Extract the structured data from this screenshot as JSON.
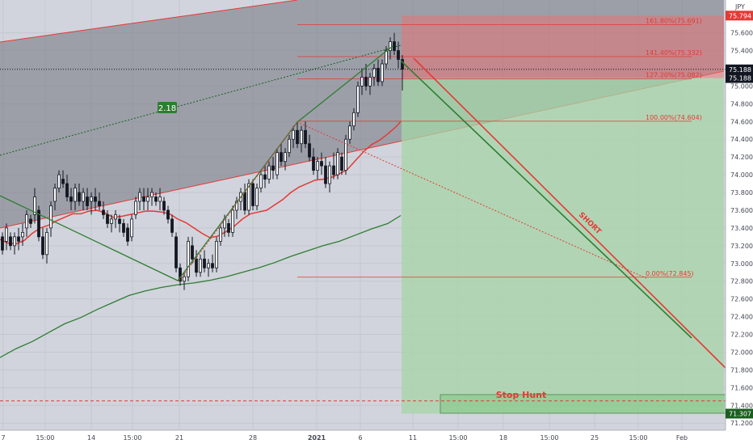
{
  "chart_data": {
    "type": "line",
    "currency": "JPY",
    "x_tick_labels": [
      "7",
      "15:00",
      "14",
      "15:00",
      "21",
      "28",
      "2021",
      "6",
      "11",
      "15:00",
      "18",
      "15:00",
      "25",
      "15:00",
      "Feb"
    ],
    "y_tick_labels": [
      "71.200",
      "71.400",
      "71.600",
      "71.800",
      "72.000",
      "72.200",
      "72.400",
      "72.600",
      "72.800",
      "73.000",
      "73.200",
      "73.400",
      "73.600",
      "73.800",
      "74.000",
      "74.200",
      "74.400",
      "74.600",
      "74.800",
      "75.000",
      "75.200",
      "75.400",
      "75.600"
    ],
    "ylim": [
      71.12,
      75.97
    ],
    "price_labels": [
      {
        "text": "75.794",
        "price": 75.794,
        "color": "#e53935"
      },
      {
        "text": "75.188",
        "price": 75.188,
        "color": "#131722"
      },
      {
        "text": "75.188",
        "price": 75.09,
        "color": "#131722"
      },
      {
        "text": "71.307",
        "price": 71.307,
        "color": "#1b5e20"
      }
    ],
    "fib_levels": [
      {
        "label": "161.80%(75.691)",
        "price": 75.691
      },
      {
        "label": "141.40%(75.332)",
        "price": 75.332
      },
      {
        "label": "127.20%(75.082)",
        "price": 75.082
      },
      {
        "label": "100.00%(74.604)",
        "price": 74.604
      },
      {
        "label": "0.00%(72.845)",
        "price": 72.845
      }
    ],
    "annotations": {
      "regression_badge": "2.18",
      "short_label": "SHORT",
      "stop_hunt_label": "Stop Hunt"
    },
    "position": {
      "entry": 75.09,
      "stop": 75.794,
      "target": 71.307
    },
    "stop_hunt_line": 71.45,
    "sma_red": [
      [
        0,
        73.27
      ],
      [
        10,
        73.23
      ],
      [
        20,
        73.22
      ],
      [
        30,
        73.26
      ],
      [
        40,
        73.34
      ],
      [
        50,
        73.4
      ],
      [
        60,
        73.43
      ],
      [
        70,
        73.48
      ],
      [
        80,
        73.52
      ],
      [
        90,
        73.56
      ],
      [
        100,
        73.56
      ],
      [
        110,
        73.59
      ],
      [
        120,
        73.6
      ],
      [
        130,
        73.57
      ],
      [
        140,
        73.52
      ],
      [
        150,
        73.53
      ],
      [
        160,
        73.55
      ],
      [
        170,
        73.57
      ],
      [
        180,
        73.59
      ],
      [
        190,
        73.59
      ],
      [
        200,
        73.58
      ],
      [
        210,
        73.56
      ],
      [
        220,
        73.5
      ],
      [
        230,
        73.46
      ],
      [
        240,
        73.4
      ],
      [
        250,
        73.34
      ],
      [
        260,
        73.29
      ],
      [
        270,
        73.31
      ],
      [
        280,
        73.36
      ],
      [
        290,
        73.42
      ],
      [
        300,
        73.5
      ],
      [
        310,
        73.56
      ],
      [
        320,
        73.58
      ],
      [
        330,
        73.6
      ],
      [
        340,
        73.66
      ],
      [
        350,
        73.72
      ],
      [
        360,
        73.8
      ],
      [
        370,
        73.86
      ],
      [
        380,
        73.9
      ],
      [
        390,
        73.94
      ],
      [
        400,
        73.95
      ],
      [
        410,
        73.97
      ],
      [
        420,
        74.01
      ],
      [
        430,
        74.06
      ],
      [
        440,
        74.16
      ],
      [
        450,
        74.26
      ],
      [
        460,
        74.34
      ],
      [
        470,
        74.39
      ],
      [
        480,
        74.46
      ],
      [
        490,
        74.54
      ],
      [
        496,
        74.6
      ]
    ],
    "sma_green": [
      [
        0,
        71.94
      ],
      [
        20,
        72.04
      ],
      [
        40,
        72.12
      ],
      [
        60,
        72.22
      ],
      [
        80,
        72.32
      ],
      [
        100,
        72.39
      ],
      [
        120,
        72.48
      ],
      [
        140,
        72.56
      ],
      [
        160,
        72.64
      ],
      [
        180,
        72.69
      ],
      [
        200,
        72.73
      ],
      [
        220,
        72.76
      ],
      [
        240,
        72.78
      ],
      [
        260,
        72.81
      ],
      [
        280,
        72.85
      ],
      [
        300,
        72.9
      ],
      [
        320,
        72.95
      ],
      [
        340,
        73.01
      ],
      [
        360,
        73.08
      ],
      [
        380,
        73.14
      ],
      [
        400,
        73.2
      ],
      [
        420,
        73.25
      ],
      [
        440,
        73.32
      ],
      [
        460,
        73.39
      ],
      [
        480,
        73.45
      ],
      [
        496,
        73.54
      ]
    ],
    "candles": [
      [
        3,
        73.3,
        73.35,
        73.1,
        73.15
      ],
      [
        8,
        73.25,
        73.45,
        73.15,
        73.4
      ],
      [
        13,
        73.3,
        73.35,
        73.15,
        73.2
      ],
      [
        18,
        73.2,
        73.35,
        73.1,
        73.3
      ],
      [
        23,
        73.3,
        73.4,
        73.15,
        73.25
      ],
      [
        28,
        73.3,
        73.45,
        73.2,
        73.35
      ],
      [
        33,
        73.4,
        73.6,
        73.3,
        73.55
      ],
      [
        38,
        73.5,
        73.55,
        73.4,
        73.45
      ],
      [
        43,
        73.55,
        73.85,
        73.45,
        73.75
      ],
      [
        48,
        73.6,
        73.65,
        73.25,
        73.3
      ],
      [
        53,
        73.3,
        73.4,
        73.05,
        73.1
      ],
      [
        58,
        73.1,
        73.4,
        73.0,
        73.35
      ],
      [
        63,
        73.4,
        73.7,
        73.3,
        73.65
      ],
      [
        68,
        73.7,
        73.9,
        73.6,
        73.85
      ],
      [
        73,
        73.85,
        74.05,
        73.8,
        74.0
      ],
      [
        78,
        73.95,
        74.05,
        73.85,
        73.9
      ],
      [
        83,
        73.9,
        74.0,
        73.7,
        73.75
      ],
      [
        88,
        73.75,
        73.85,
        73.6,
        73.7
      ],
      [
        93,
        73.7,
        73.9,
        73.6,
        73.85
      ],
      [
        98,
        73.8,
        73.9,
        73.65,
        73.7
      ],
      [
        103,
        73.7,
        73.85,
        73.6,
        73.8
      ],
      [
        108,
        73.75,
        73.85,
        73.6,
        73.65
      ],
      [
        113,
        73.7,
        73.8,
        73.55,
        73.75
      ],
      [
        118,
        73.75,
        73.85,
        73.6,
        73.7
      ],
      [
        123,
        73.7,
        73.8,
        73.6,
        73.65
      ],
      [
        128,
        73.6,
        73.7,
        73.5,
        73.55
      ],
      [
        133,
        73.55,
        73.6,
        73.4,
        73.45
      ],
      [
        138,
        73.45,
        73.55,
        73.35,
        73.5
      ],
      [
        143,
        73.5,
        73.6,
        73.4,
        73.55
      ],
      [
        148,
        73.5,
        73.55,
        73.35,
        73.45
      ],
      [
        153,
        73.45,
        73.5,
        73.3,
        73.35
      ],
      [
        158,
        73.4,
        73.45,
        73.2,
        73.25
      ],
      [
        163,
        73.3,
        73.55,
        73.25,
        73.5
      ],
      [
        168,
        73.55,
        73.75,
        73.5,
        73.7
      ],
      [
        173,
        73.7,
        73.85,
        73.6,
        73.8
      ],
      [
        178,
        73.75,
        73.85,
        73.6,
        73.7
      ],
      [
        183,
        73.7,
        73.85,
        73.6,
        73.75
      ],
      [
        188,
        73.75,
        73.85,
        73.65,
        73.8
      ],
      [
        193,
        73.75,
        73.8,
        73.65,
        73.7
      ],
      [
        198,
        73.7,
        73.85,
        73.6,
        73.75
      ],
      [
        203,
        73.7,
        73.75,
        73.55,
        73.6
      ],
      [
        208,
        73.6,
        73.65,
        73.45,
        73.5
      ],
      [
        213,
        73.5,
        73.55,
        73.3,
        73.35
      ],
      [
        218,
        73.3,
        73.35,
        72.9,
        72.95
      ],
      [
        223,
        72.95,
        73.0,
        72.75,
        72.8
      ],
      [
        228,
        72.8,
        72.9,
        72.7,
        72.85
      ],
      [
        233,
        72.85,
        73.3,
        72.8,
        73.25
      ],
      [
        238,
        73.2,
        73.3,
        73.0,
        73.05
      ],
      [
        243,
        73.05,
        73.15,
        72.85,
        72.9
      ],
      [
        248,
        72.9,
        73.1,
        72.85,
        73.05
      ],
      [
        253,
        73.05,
        73.15,
        72.9,
        72.95
      ],
      [
        258,
        72.95,
        73.05,
        72.85,
        73.0
      ],
      [
        263,
        73.0,
        73.1,
        72.9,
        72.95
      ],
      [
        268,
        72.95,
        73.3,
        72.9,
        73.25
      ],
      [
        273,
        73.25,
        73.45,
        73.2,
        73.4
      ],
      [
        278,
        73.4,
        73.55,
        73.3,
        73.5
      ],
      [
        283,
        73.45,
        73.5,
        73.3,
        73.35
      ],
      [
        288,
        73.35,
        73.65,
        73.3,
        73.6
      ],
      [
        293,
        73.6,
        73.75,
        73.5,
        73.7
      ],
      [
        298,
        73.7,
        73.85,
        73.6,
        73.8
      ],
      [
        303,
        73.8,
        73.9,
        73.55,
        73.6
      ],
      [
        308,
        73.6,
        73.95,
        73.55,
        73.9
      ],
      [
        313,
        73.9,
        73.95,
        73.6,
        73.65
      ],
      [
        318,
        73.65,
        73.9,
        73.6,
        73.85
      ],
      [
        323,
        73.85,
        74.05,
        73.8,
        74.0
      ],
      [
        328,
        74.0,
        74.1,
        73.85,
        73.95
      ],
      [
        333,
        73.95,
        74.15,
        73.9,
        74.1
      ],
      [
        338,
        74.1,
        74.2,
        73.95,
        74.05
      ],
      [
        343,
        74.0,
        74.3,
        73.95,
        74.25
      ],
      [
        348,
        74.25,
        74.35,
        74.1,
        74.15
      ],
      [
        353,
        74.15,
        74.3,
        74.05,
        74.25
      ],
      [
        358,
        74.25,
        74.45,
        74.2,
        74.4
      ],
      [
        363,
        74.4,
        74.55,
        74.3,
        74.5
      ],
      [
        368,
        74.5,
        74.6,
        74.3,
        74.35
      ],
      [
        373,
        74.35,
        74.55,
        74.25,
        74.5
      ],
      [
        378,
        74.5,
        74.6,
        74.3,
        74.35
      ],
      [
        383,
        74.35,
        74.45,
        74.15,
        74.2
      ],
      [
        388,
        74.2,
        74.3,
        74.0,
        74.05
      ],
      [
        393,
        74.05,
        74.2,
        73.95,
        74.15
      ],
      [
        398,
        74.15,
        74.25,
        74.0,
        74.1
      ],
      [
        403,
        74.1,
        74.2,
        73.85,
        73.9
      ],
      [
        408,
        73.9,
        74.15,
        73.8,
        74.1
      ],
      [
        413,
        74.1,
        74.25,
        73.95,
        74.0
      ],
      [
        418,
        74.0,
        74.3,
        73.95,
        74.25
      ],
      [
        423,
        74.2,
        74.25,
        74.0,
        74.05
      ],
      [
        428,
        74.05,
        74.45,
        74.0,
        74.4
      ],
      [
        433,
        74.4,
        74.6,
        74.35,
        74.55
      ],
      [
        438,
        74.55,
        74.75,
        74.5,
        74.7
      ],
      [
        443,
        74.7,
        75.05,
        74.65,
        75.0
      ],
      [
        448,
        75.0,
        75.2,
        74.9,
        75.1
      ],
      [
        453,
        75.1,
        75.25,
        74.95,
        75.0
      ],
      [
        458,
        75.0,
        75.15,
        74.9,
        75.1
      ],
      [
        463,
        75.1,
        75.25,
        75.0,
        75.2
      ],
      [
        468,
        75.2,
        75.3,
        75.0,
        75.05
      ],
      [
        473,
        75.05,
        75.3,
        75.0,
        75.25
      ],
      [
        478,
        75.25,
        75.45,
        75.2,
        75.4
      ],
      [
        483,
        75.4,
        75.55,
        75.3,
        75.5
      ],
      [
        488,
        75.5,
        75.6,
        75.35,
        75.4
      ],
      [
        493,
        75.4,
        75.5,
        75.2,
        75.3
      ],
      [
        498,
        75.3,
        75.35,
        74.95,
        75.19
      ]
    ]
  }
}
